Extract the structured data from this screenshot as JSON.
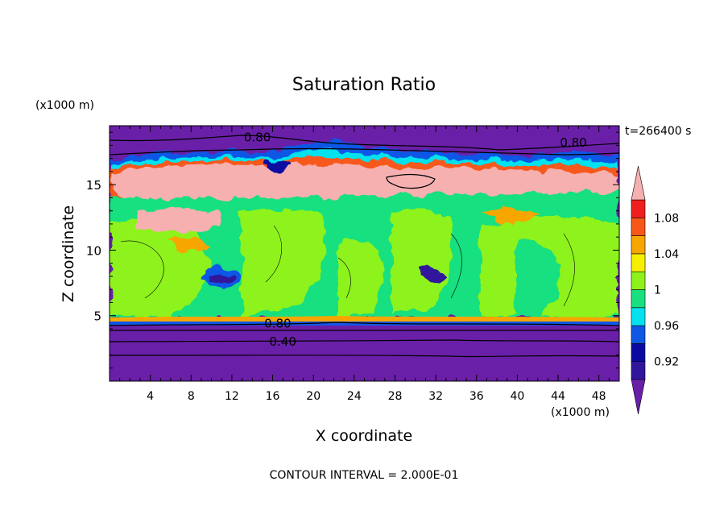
{
  "chart_data": {
    "type": "heatmap",
    "title": "Saturation Ratio",
    "time_label": "t=266400 s",
    "xlabel": "X coordinate",
    "ylabel": "Z coordinate",
    "x_unit": "(x1000 m)",
    "y_unit": "(x1000 m)",
    "xlim": [
      0,
      50
    ],
    "ylim": [
      0,
      19.5
    ],
    "x_ticks": [
      4,
      8,
      12,
      16,
      20,
      24,
      28,
      32,
      36,
      40,
      44,
      48
    ],
    "y_ticks": [
      5,
      10,
      15
    ],
    "footer": "CONTOUR INTERVAL = 2.000E-01",
    "contour_labels": [
      {
        "text": "0.80",
        "x": 14.5,
        "z": 18.6
      },
      {
        "text": "0.80",
        "x": 45.5,
        "z": 18.2
      },
      {
        "text": "0.80",
        "x": 16.5,
        "z": 4.4
      },
      {
        "text": "0.40",
        "x": 17.0,
        "z": 3.0
      }
    ],
    "colorbar": {
      "labels": [
        "1.08",
        "1.04",
        "1",
        "0.96",
        "0.92"
      ],
      "levels": [
        0.9,
        0.92,
        0.94,
        0.96,
        0.98,
        1.0,
        1.02,
        1.04,
        1.06,
        1.08,
        1.1
      ],
      "colors": [
        "#6a1fa8",
        "#31169c",
        "#0b09a2",
        "#1057e6",
        "#05e2ee",
        "#19e07f",
        "#8ef21a",
        "#f6f000",
        "#f7a600",
        "#f7581a",
        "#ef1f1f",
        "#f6b0b0"
      ]
    }
  }
}
